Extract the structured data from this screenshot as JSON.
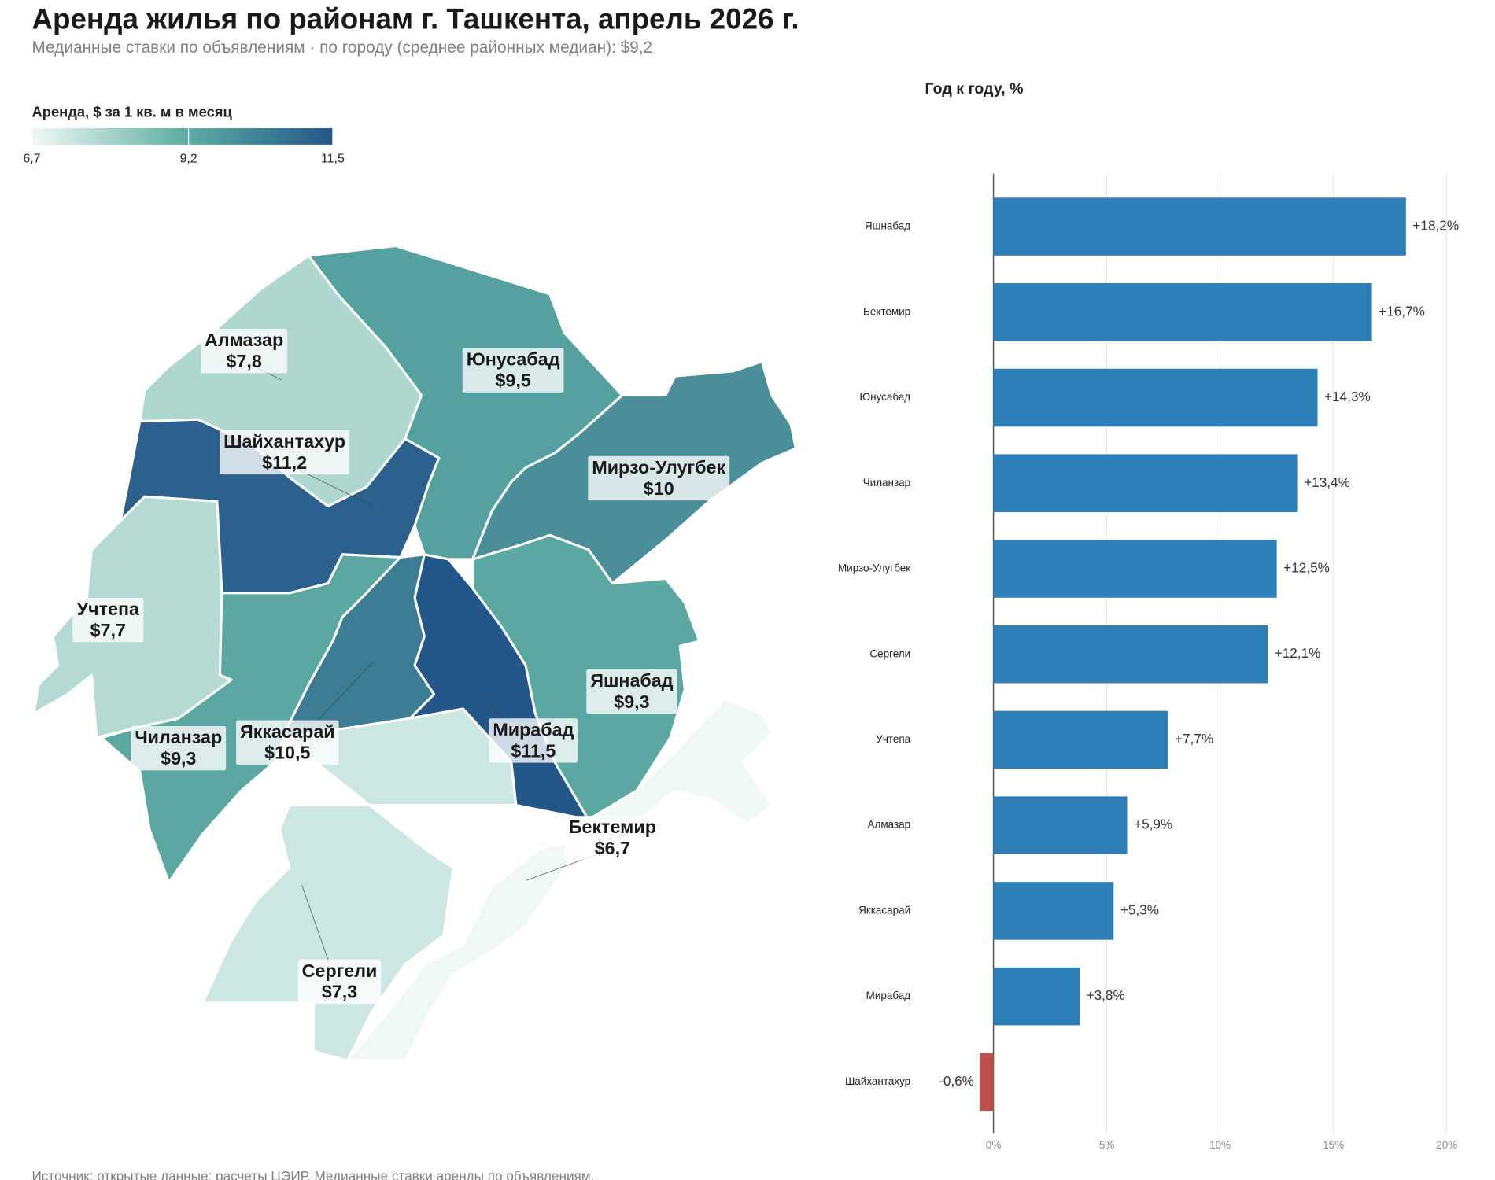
{
  "title": "Аренда жилья по районам г. Ташкента, апрель 2026 г.",
  "subtitle": "Медианные ставки по объявлениям · по городу (среднее районных медиан): $9,2",
  "source": "Источник: открытые данные; расчеты ЦЭИР. Медианные ставки аренды по объявлениям.",
  "chart_data": [
    {
      "type": "choropleth",
      "title": "Аренда, $ за 1 кв. м в месяц",
      "categories": [
        "Алмазар",
        "Юнусабад",
        "Мирзо-Улугбек",
        "Шайхантахур",
        "Учтепа",
        "Чиланзар",
        "Яккасарай",
        "Мирабад",
        "Яшнабад",
        "Сергели",
        "Бектемир"
      ],
      "values": [
        7.8,
        9.5,
        10,
        11.2,
        7.7,
        9.3,
        10.5,
        11.5,
        9.3,
        7.3,
        6.7
      ],
      "value_labels": [
        "$7,8",
        "$9,5",
        "$10",
        "$11,2",
        "$7,7",
        "$9,3",
        "$10,5",
        "$11,5",
        "$9,3",
        "$7,3",
        "$6,7"
      ],
      "colorscale": [
        "#f0f8f6",
        "#5fb0a3",
        "#235689"
      ],
      "clim": [
        6.7,
        11.5
      ],
      "cticks": [
        {
          "value": 6.7,
          "label": "6,7"
        },
        {
          "value": 9.2,
          "label": "9,2"
        },
        {
          "value": 11.5,
          "label": "11,5"
        }
      ]
    },
    {
      "type": "bar",
      "orientation": "horizontal",
      "title": "Год к году, %",
      "categories": [
        "Яшнабад",
        "Бектемир",
        "Юнусабад",
        "Чиланзар",
        "Мирзо-Улугбек",
        "Сергели",
        "Учтепа",
        "Алмазар",
        "Яккасарай",
        "Мирабад",
        "Шайхантахур"
      ],
      "values": [
        18.2,
        16.7,
        14.3,
        13.4,
        12.5,
        12.1,
        7.7,
        5.9,
        5.3,
        3.8,
        -0.6
      ],
      "value_labels": [
        "+18,2%",
        "+16,7%",
        "+14,3%",
        "+13,4%",
        "+12,5%",
        "+12,1%",
        "+7,7%",
        "+5,9%",
        "+5,3%",
        "+3,8%",
        "-0,6%"
      ],
      "color": "#2e7eb8",
      "negative_color": "#c0504d",
      "xlim": [
        -2,
        21
      ],
      "xticks": [
        {
          "value": 0,
          "label": "0%"
        },
        {
          "value": 5,
          "label": "5%"
        },
        {
          "value": 10,
          "label": "10%"
        },
        {
          "value": 15,
          "label": "15%"
        },
        {
          "value": 20,
          "label": "20%"
        }
      ],
      "grid": true
    }
  ]
}
